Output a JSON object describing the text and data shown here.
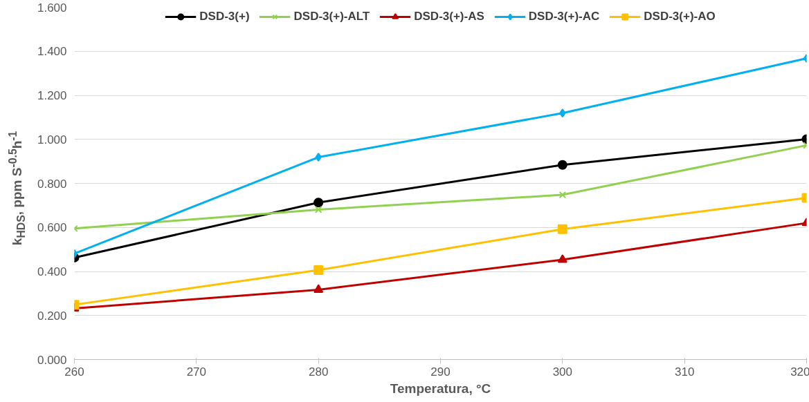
{
  "chart_data": {
    "type": "line",
    "xlabel": "Temperatura, °C",
    "ylabel": "k$_{HDS}$, ppm S$^{-0.5}$h$^{-1}$",
    "x": [
      260,
      280,
      300,
      320
    ],
    "series": [
      {
        "name": "DSD-3(+)",
        "color": "#000000",
        "marker": "circle",
        "values": [
          0.463,
          0.713,
          0.884,
          1.001
        ]
      },
      {
        "name": "DSD-3(+)-ALT",
        "color": "#92d050",
        "marker": "cross",
        "values": [
          0.595,
          0.681,
          0.748,
          0.973
        ]
      },
      {
        "name": "DSD-3(+)-AS",
        "color": "#c00000",
        "marker": "triangle",
        "values": [
          0.232,
          0.317,
          0.453,
          0.62
        ]
      },
      {
        "name": "DSD-3(+)-AC",
        "color": "#00b0f0",
        "marker": "diamond",
        "values": [
          0.481,
          0.919,
          1.119,
          1.368
        ]
      },
      {
        "name": "DSD-3(+)-AO",
        "color": "#ffc000",
        "marker": "square",
        "values": [
          0.249,
          0.406,
          0.592,
          0.734
        ]
      }
    ],
    "xlim": [
      260,
      320
    ],
    "xticks": [
      260,
      270,
      280,
      290,
      300,
      310,
      320
    ],
    "ylim": [
      0,
      1.6
    ],
    "yticks": [
      {
        "value": 0,
        "label": "0.000"
      },
      {
        "value": 0.2,
        "label": "0.200"
      },
      {
        "value": 0.4,
        "label": "0.400"
      },
      {
        "value": 0.6,
        "label": "0.600"
      },
      {
        "value": 0.8,
        "label": "0.800"
      },
      {
        "value": 1.0,
        "label": "1.000"
      },
      {
        "value": 1.2,
        "label": "1.200"
      },
      {
        "value": 1.4,
        "label": "1.400"
      },
      {
        "value": 1.6,
        "label": "1.600"
      }
    ],
    "grid": "y",
    "legend": "top",
    "line_style": "solid"
  }
}
